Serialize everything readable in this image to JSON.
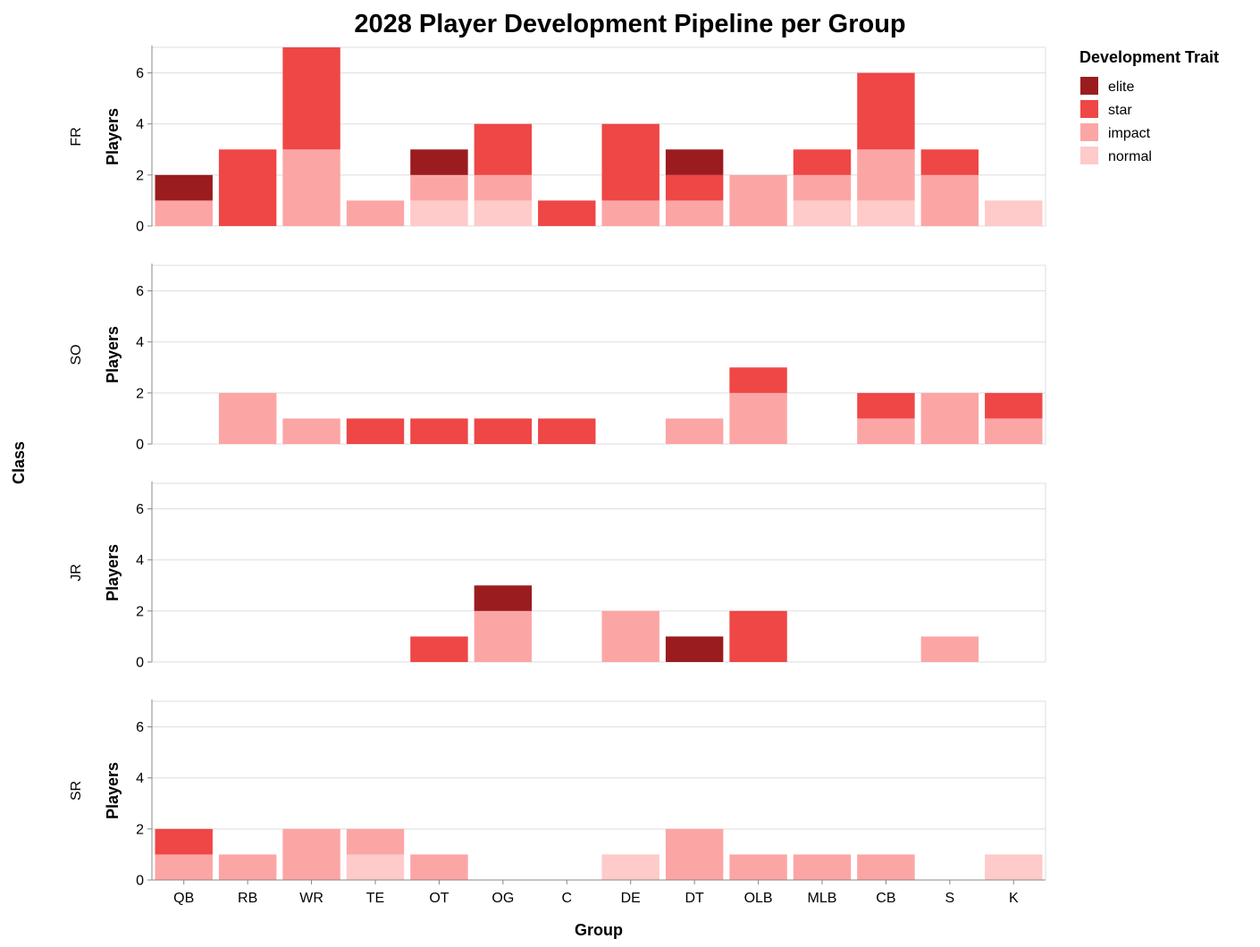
{
  "chart_data": {
    "type": "bar",
    "stacked": true,
    "faceted_by": "Class",
    "title": "2028 Player Development Pipeline per Group",
    "xlabel": "Group",
    "ylabel": "Players",
    "facet_label": "Class",
    "ylim": [
      0,
      7
    ],
    "yticks": [
      0,
      2,
      4,
      6
    ],
    "grid": true,
    "legend": {
      "title": "Development Trait",
      "position": "top-right"
    },
    "categories": [
      "QB",
      "RB",
      "WR",
      "TE",
      "OT",
      "OG",
      "C",
      "DE",
      "DT",
      "OLB",
      "MLB",
      "CB",
      "S",
      "K"
    ],
    "traits": [
      {
        "name": "elite",
        "color": "#9b1c1f"
      },
      {
        "name": "star",
        "color": "#ef4646"
      },
      {
        "name": "impact",
        "color": "#fca5a5"
      },
      {
        "name": "normal",
        "color": "#fecaca"
      }
    ],
    "stack_order_bottom_to_top": [
      "normal",
      "impact",
      "star",
      "elite"
    ],
    "facets": [
      {
        "class": "FR",
        "series": [
          {
            "name": "elite",
            "values": [
              1,
              0,
              0,
              0,
              1,
              0,
              0,
              0,
              1,
              0,
              0,
              0,
              0,
              0
            ]
          },
          {
            "name": "star",
            "values": [
              0,
              3,
              4,
              0,
              0,
              2,
              1,
              3,
              1,
              0,
              1,
              3,
              1,
              0
            ]
          },
          {
            "name": "impact",
            "values": [
              1,
              0,
              3,
              1,
              1,
              1,
              0,
              1,
              1,
              2,
              1,
              2,
              2,
              0
            ]
          },
          {
            "name": "normal",
            "values": [
              0,
              0,
              0,
              0,
              1,
              1,
              0,
              0,
              0,
              0,
              1,
              1,
              0,
              1
            ]
          }
        ]
      },
      {
        "class": "SO",
        "series": [
          {
            "name": "elite",
            "values": [
              0,
              0,
              0,
              0,
              0,
              0,
              0,
              0,
              0,
              0,
              0,
              0,
              0,
              0
            ]
          },
          {
            "name": "star",
            "values": [
              0,
              0,
              0,
              1,
              1,
              1,
              1,
              0,
              0,
              1,
              0,
              1,
              0,
              1
            ]
          },
          {
            "name": "impact",
            "values": [
              0,
              2,
              1,
              0,
              0,
              0,
              0,
              0,
              1,
              2,
              0,
              1,
              2,
              1
            ]
          },
          {
            "name": "normal",
            "values": [
              0,
              0,
              0,
              0,
              0,
              0,
              0,
              0,
              0,
              0,
              0,
              0,
              0,
              0
            ]
          }
        ]
      },
      {
        "class": "JR",
        "series": [
          {
            "name": "elite",
            "values": [
              0,
              0,
              0,
              0,
              0,
              1,
              0,
              0,
              1,
              0,
              0,
              0,
              0,
              0
            ]
          },
          {
            "name": "star",
            "values": [
              0,
              0,
              0,
              0,
              1,
              0,
              0,
              0,
              0,
              2,
              0,
              0,
              0,
              0
            ]
          },
          {
            "name": "impact",
            "values": [
              0,
              0,
              0,
              0,
              0,
              2,
              0,
              2,
              0,
              0,
              0,
              0,
              1,
              0
            ]
          },
          {
            "name": "normal",
            "values": [
              0,
              0,
              0,
              0,
              0,
              0,
              0,
              0,
              0,
              0,
              0,
              0,
              0,
              0
            ]
          }
        ]
      },
      {
        "class": "SR",
        "series": [
          {
            "name": "elite",
            "values": [
              0,
              0,
              0,
              0,
              0,
              0,
              0,
              0,
              0,
              0,
              0,
              0,
              0,
              0
            ]
          },
          {
            "name": "star",
            "values": [
              1,
              0,
              0,
              0,
              0,
              0,
              0,
              0,
              0,
              0,
              0,
              0,
              0,
              0
            ]
          },
          {
            "name": "impact",
            "values": [
              1,
              1,
              2,
              1,
              1,
              0,
              0,
              0,
              2,
              1,
              1,
              1,
              0,
              0
            ]
          },
          {
            "name": "normal",
            "values": [
              0,
              0,
              0,
              1,
              0,
              0,
              0,
              1,
              0,
              0,
              0,
              0,
              0,
              1
            ]
          }
        ]
      }
    ]
  }
}
